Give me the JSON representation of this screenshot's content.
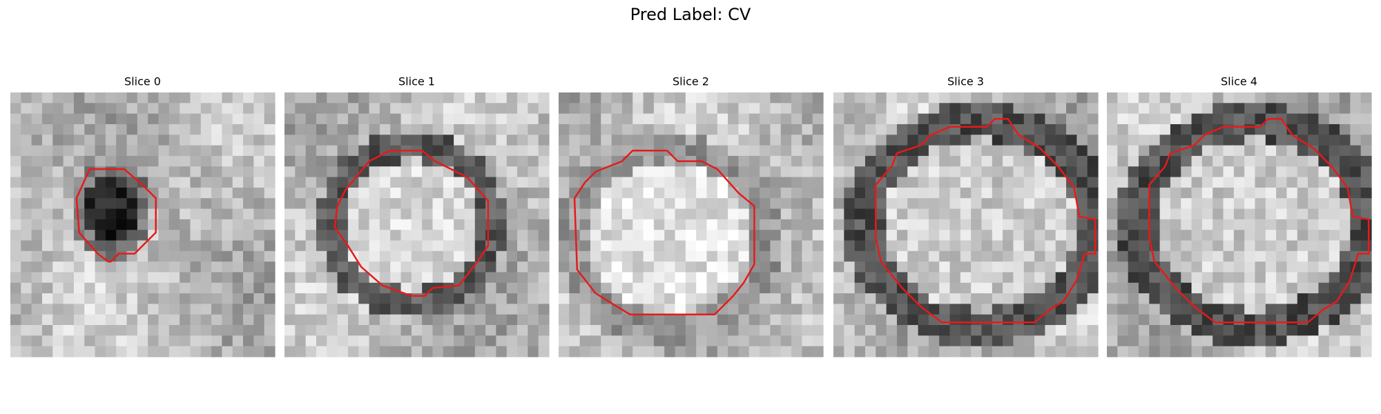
{
  "title": "Pred Label: CV",
  "panels": [
    {
      "title": "Slice 0"
    },
    {
      "title": "Slice 1"
    },
    {
      "title": "Slice 2"
    },
    {
      "title": "Slice 3"
    },
    {
      "title": "Slice 4"
    }
  ]
}
